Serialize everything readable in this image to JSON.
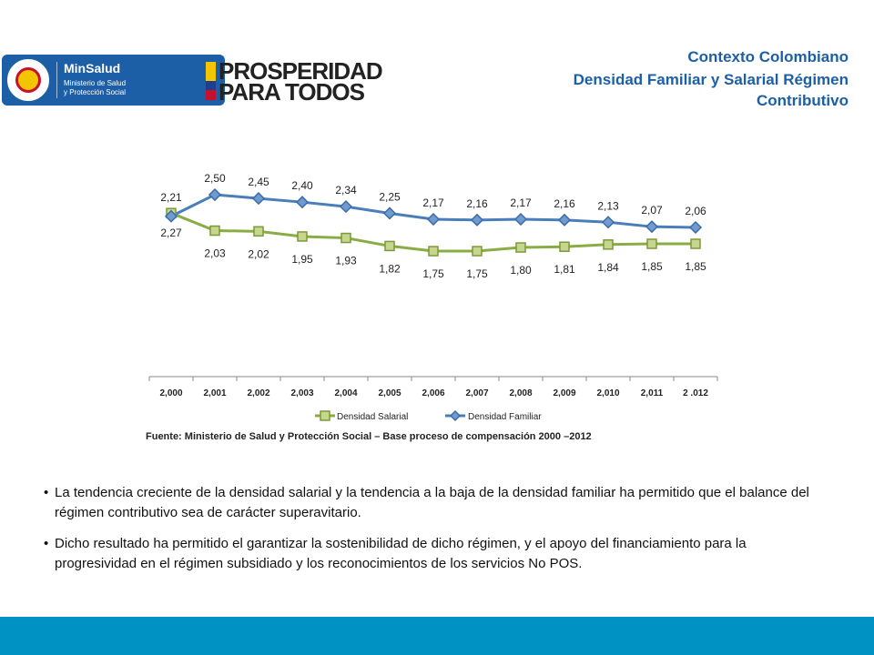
{
  "header": {
    "minsalud_title": "MinSalud",
    "minsalud_line1": "Ministerio de Salud",
    "minsalud_line2": "y Protección Social",
    "prosperidad_line1": "PROSPERIDAD",
    "prosperidad_line2": "PARA TODOS",
    "title_line1": "Contexto Colombiano",
    "title_line2": "Densidad Familiar y Salarial Régimen",
    "title_line3": "Contributivo"
  },
  "colors": {
    "salarial": "#8aac44",
    "familiar": "#4a7ebb",
    "marker_salarial": "#c6d68c",
    "accent": "#1d5fa6",
    "footer": "#0092c2"
  },
  "chart_data": {
    "type": "line",
    "categories": [
      "2,000",
      "2,001",
      "2,002",
      "2,003",
      "2,004",
      "2,005",
      "2,006",
      "2,007",
      "2,008",
      "2,009",
      "2,010",
      "2,011",
      "2 .012"
    ],
    "series": [
      {
        "name": "Densidad Salarial",
        "values": [
          2.27,
          2.03,
          2.02,
          1.95,
          1.93,
          1.82,
          1.75,
          1.75,
          1.8,
          1.81,
          1.84,
          1.85,
          1.85
        ],
        "labels": [
          "2,27",
          "2,03",
          "2,02",
          "1,95",
          "1,93",
          "1,82",
          "1,75",
          "1,75",
          "1,80",
          "1,81",
          "1,84",
          "1,85",
          "1,85"
        ]
      },
      {
        "name": "Densidad Familiar",
        "values": [
          2.21,
          2.5,
          2.45,
          2.4,
          2.34,
          2.25,
          2.17,
          2.16,
          2.17,
          2.16,
          2.13,
          2.07,
          2.06
        ],
        "labels": [
          "2,21",
          "2,50",
          "2,45",
          "2,40",
          "2,34",
          "2,25",
          "2,17",
          "2,16",
          "2,17",
          "2,16",
          "2,13",
          "2,07",
          "2,06"
        ]
      }
    ],
    "legend": "bottom"
  },
  "source": "Fuente: Ministerio de Salud y Protección Social – Base proceso de compensación 2000 –2012",
  "bullets": [
    "La tendencia creciente de la densidad salarial y la tendencia a la baja de la densidad familiar ha permitido que el balance del régimen contributivo sea de carácter superavitario.",
    "Dicho resultado ha permitido el garantizar la sostenibilidad de dicho régimen, y el apoyo del financiamiento para la progresividad en el régimen subsidiado y los reconocimientos de los servicios No POS."
  ]
}
